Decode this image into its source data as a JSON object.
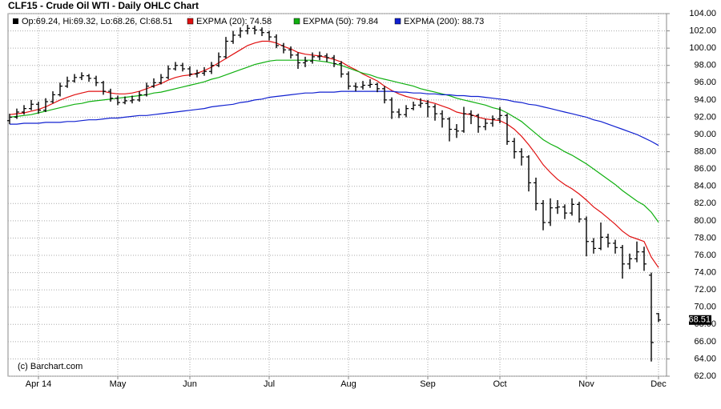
{
  "chart_data": {
    "type": "ohlc",
    "title": "CLF15 - Crude Oil WTI - Daily OHLC Chart",
    "ohlc_legend": "Op:69.24, Hi:69.32, Lo:68.26, Cl:68.51",
    "credit": "(c) Barchart.com",
    "bar_color": "#000000",
    "grid": true,
    "last_value": 68.51,
    "ylim": [
      62,
      104
    ],
    "yticks": [
      {
        "value": 62,
        "label": "62.00"
      },
      {
        "value": 64,
        "label": "64.00"
      },
      {
        "value": 66,
        "label": "66.00"
      },
      {
        "value": 68,
        "label": "68.00"
      },
      {
        "value": 70,
        "label": "70.00"
      },
      {
        "value": 72,
        "label": "72.00"
      },
      {
        "value": 74,
        "label": "74.00"
      },
      {
        "value": 76,
        "label": "76.00"
      },
      {
        "value": 78,
        "label": "78.00"
      },
      {
        "value": 80,
        "label": "80.00"
      },
      {
        "value": 82,
        "label": "82.00"
      },
      {
        "value": 84,
        "label": "84.00"
      },
      {
        "value": 86,
        "label": "86.00"
      },
      {
        "value": 88,
        "label": "88.00"
      },
      {
        "value": 90,
        "label": "90.00"
      },
      {
        "value": 92,
        "label": "92.00"
      },
      {
        "value": 94,
        "label": "94.00"
      },
      {
        "value": 96,
        "label": "96.00"
      },
      {
        "value": 98,
        "label": "98.00"
      },
      {
        "value": 100,
        "label": "100.00"
      },
      {
        "value": 102,
        "label": "102.00"
      },
      {
        "value": 104,
        "label": "104.00"
      }
    ],
    "categories": [
      null,
      null,
      null,
      null,
      "Apr 14",
      null,
      null,
      null,
      null,
      null,
      null,
      null,
      null,
      null,
      null,
      "May",
      null,
      null,
      null,
      null,
      null,
      null,
      null,
      null,
      null,
      "Jun",
      null,
      null,
      null,
      null,
      null,
      null,
      null,
      null,
      null,
      null,
      "Jul",
      null,
      null,
      null,
      null,
      null,
      null,
      null,
      null,
      null,
      null,
      "Aug",
      null,
      null,
      null,
      null,
      null,
      null,
      null,
      null,
      null,
      null,
      "Sep",
      null,
      null,
      null,
      null,
      null,
      null,
      null,
      null,
      null,
      "Oct",
      null,
      null,
      null,
      null,
      null,
      null,
      null,
      null,
      null,
      null,
      null,
      "Nov",
      null,
      null,
      null,
      null,
      null,
      null,
      null,
      null,
      null,
      "Dec"
    ],
    "open": [
      91.6,
      92.0,
      92.6,
      93.0,
      93.5,
      92.8,
      93.8,
      94.6,
      95.6,
      96.2,
      96.6,
      96.8,
      96.5,
      96.0,
      95.0,
      94.2,
      93.7,
      93.9,
      94.0,
      94.6,
      95.6,
      96.0,
      96.6,
      97.6,
      98.0,
      97.6,
      97.0,
      97.1,
      97.3,
      98.0,
      99.0,
      100.8,
      101.5,
      102.0,
      102.3,
      102.1,
      101.8,
      101.3,
      100.3,
      99.8,
      99.2,
      98.3,
      98.5,
      99.0,
      99.1,
      98.9,
      98.2,
      97.0,
      95.6,
      95.5,
      95.7,
      95.8,
      95.3,
      94.0,
      92.6,
      92.3,
      93.0,
      93.4,
      93.6,
      93.2,
      92.4,
      91.8,
      90.6,
      90.4,
      92.4,
      92.2,
      90.9,
      91.3,
      91.8,
      92.2,
      89.2,
      88.0,
      87.4,
      84.4,
      82.0,
      79.8,
      81.5,
      81.6,
      80.9,
      81.9,
      80.2,
      77.6,
      76.8,
      78.1,
      77.4,
      76.9,
      75.0,
      75.6,
      76.4,
      73.7,
      69.24
    ],
    "high": [
      92.4,
      93.0,
      93.4,
      94.0,
      93.8,
      94.2,
      95.0,
      96.0,
      96.7,
      97.0,
      97.2,
      97.0,
      96.8,
      96.2,
      95.3,
      94.5,
      94.4,
      94.5,
      95.0,
      96.0,
      96.5,
      97.0,
      98.0,
      98.4,
      98.3,
      97.9,
      97.5,
      97.8,
      98.4,
      99.5,
      101.3,
      102.0,
      102.4,
      102.7,
      102.6,
      102.4,
      102.0,
      101.6,
      100.6,
      100.2,
      99.5,
      99.0,
      99.5,
      99.6,
      99.4,
      99.2,
      98.5,
      97.3,
      96.0,
      96.2,
      96.4,
      96.0,
      95.6,
      94.3,
      93.0,
      93.4,
      93.8,
      94.2,
      94.0,
      93.5,
      92.8,
      92.0,
      91.2,
      93.2,
      92.8,
      92.4,
      91.8,
      92.2,
      93.2,
      92.4,
      89.6,
      88.4,
      87.6,
      85.0,
      82.4,
      82.6,
      82.4,
      81.9,
      82.6,
      82.2,
      80.5,
      78.0,
      79.8,
      78.5,
      77.8,
      77.2,
      76.2,
      77.6,
      77.0,
      74.0,
      69.32
    ],
    "low": [
      91.2,
      91.8,
      92.3,
      92.8,
      92.4,
      92.6,
      93.6,
      94.4,
      95.4,
      96.0,
      96.3,
      96.1,
      95.6,
      94.6,
      93.8,
      93.4,
      93.5,
      93.6,
      93.8,
      94.4,
      95.4,
      95.8,
      96.4,
      97.4,
      97.3,
      96.7,
      96.6,
      96.8,
      97.0,
      97.8,
      98.8,
      100.5,
      101.2,
      101.6,
      101.6,
      101.4,
      100.9,
      100.0,
      99.4,
      98.8,
      97.6,
      97.8,
      98.2,
      98.6,
      98.4,
      97.8,
      96.6,
      95.2,
      95.0,
      95.2,
      95.4,
      94.9,
      93.6,
      91.8,
      91.9,
      92.0,
      92.8,
      93.1,
      92.0,
      91.6,
      90.8,
      89.2,
      89.6,
      90.2,
      91.2,
      90.2,
      90.5,
      90.9,
      91.3,
      88.8,
      87.2,
      86.4,
      83.4,
      81.2,
      78.9,
      79.4,
      80.8,
      80.2,
      80.6,
      79.8,
      75.9,
      76.2,
      76.6,
      76.9,
      76.2,
      73.3,
      74.4,
      75.2,
      74.2,
      63.7,
      68.26
    ],
    "close": [
      92.0,
      92.6,
      93.0,
      93.5,
      92.8,
      93.8,
      94.6,
      95.6,
      96.2,
      96.6,
      96.8,
      96.5,
      96.0,
      95.0,
      94.2,
      93.7,
      93.9,
      94.0,
      94.6,
      95.6,
      96.0,
      96.6,
      97.6,
      98.0,
      97.6,
      97.0,
      97.1,
      97.3,
      98.0,
      99.0,
      100.8,
      101.5,
      102.0,
      102.3,
      102.1,
      101.8,
      101.3,
      100.3,
      99.8,
      99.2,
      98.3,
      98.5,
      99.0,
      99.1,
      98.9,
      98.2,
      97.0,
      95.6,
      95.5,
      95.7,
      95.8,
      95.3,
      94.0,
      92.6,
      92.3,
      93.0,
      93.4,
      93.6,
      93.2,
      92.4,
      91.8,
      90.6,
      90.4,
      92.4,
      92.2,
      90.9,
      91.3,
      91.8,
      92.2,
      89.2,
      88.0,
      87.4,
      84.4,
      82.0,
      79.8,
      81.5,
      81.6,
      80.9,
      81.9,
      80.2,
      77.6,
      76.8,
      78.1,
      77.4,
      76.9,
      75.0,
      75.6,
      76.4,
      75.0,
      65.9,
      68.51
    ],
    "series": [
      {
        "name": "EXPMA (20): 74.58",
        "color": "#e01010",
        "values": [
          92.3,
          92.4,
          92.5,
          92.7,
          92.9,
          93.2,
          93.6,
          94.0,
          94.3,
          94.6,
          94.8,
          95.0,
          95.0,
          95.0,
          94.8,
          94.7,
          94.7,
          94.8,
          95.0,
          95.3,
          95.6,
          95.9,
          96.3,
          96.6,
          96.8,
          96.9,
          97.1,
          97.4,
          97.8,
          98.3,
          98.8,
          99.3,
          99.8,
          100.3,
          100.6,
          100.8,
          100.8,
          100.6,
          100.2,
          99.9,
          99.5,
          99.3,
          99.2,
          99.1,
          98.9,
          98.7,
          98.4,
          97.9,
          97.5,
          97.0,
          96.6,
          96.2,
          95.6,
          95.1,
          94.7,
          94.4,
          94.2,
          94.0,
          93.8,
          93.6,
          93.3,
          93.0,
          92.6,
          92.4,
          92.3,
          92.0,
          91.8,
          91.7,
          91.6,
          91.2,
          90.6,
          89.8,
          88.8,
          87.7,
          86.5,
          85.6,
          84.8,
          84.2,
          83.7,
          83.1,
          82.4,
          81.6,
          81.0,
          80.3,
          79.6,
          78.8,
          78.2,
          77.9,
          77.6,
          75.8,
          74.58
        ]
      },
      {
        "name": "EXPMA (50): 79.84",
        "color": "#10b010",
        "values": [
          92.0,
          92.1,
          92.2,
          92.3,
          92.5,
          92.7,
          92.9,
          93.1,
          93.3,
          93.5,
          93.6,
          93.8,
          93.9,
          94.0,
          94.1,
          94.2,
          94.3,
          94.4,
          94.5,
          94.6,
          94.8,
          94.9,
          95.1,
          95.3,
          95.5,
          95.7,
          95.9,
          96.1,
          96.4,
          96.6,
          96.9,
          97.2,
          97.5,
          97.8,
          98.1,
          98.3,
          98.5,
          98.6,
          98.6,
          98.6,
          98.6,
          98.6,
          98.6,
          98.5,
          98.4,
          98.2,
          98.0,
          97.7,
          97.4,
          97.1,
          96.9,
          96.6,
          96.4,
          96.2,
          96.0,
          95.8,
          95.6,
          95.3,
          95.1,
          94.9,
          94.7,
          94.5,
          94.2,
          94.0,
          93.8,
          93.6,
          93.4,
          93.1,
          92.9,
          92.5,
          92.0,
          91.5,
          90.8,
          90.1,
          89.4,
          88.9,
          88.5,
          88.0,
          87.6,
          87.1,
          86.6,
          86.0,
          85.4,
          84.8,
          84.2,
          83.5,
          82.9,
          82.3,
          81.8,
          81.0,
          79.84
        ]
      },
      {
        "name": "EXPMA (200): 88.73",
        "color": "#1020d0",
        "values": [
          91.2,
          91.2,
          91.3,
          91.3,
          91.3,
          91.4,
          91.4,
          91.4,
          91.5,
          91.5,
          91.6,
          91.7,
          91.7,
          91.8,
          91.9,
          91.9,
          92.0,
          92.1,
          92.2,
          92.2,
          92.3,
          92.4,
          92.5,
          92.6,
          92.7,
          92.8,
          92.9,
          93.0,
          93.2,
          93.3,
          93.4,
          93.5,
          93.7,
          93.8,
          94.0,
          94.1,
          94.3,
          94.4,
          94.5,
          94.6,
          94.7,
          94.8,
          94.8,
          94.9,
          94.9,
          94.9,
          95.0,
          95.0,
          95.0,
          95.0,
          95.0,
          95.0,
          95.0,
          95.0,
          94.9,
          94.9,
          94.8,
          94.8,
          94.7,
          94.7,
          94.6,
          94.6,
          94.5,
          94.5,
          94.4,
          94.4,
          94.3,
          94.2,
          94.1,
          94.0,
          93.8,
          93.7,
          93.5,
          93.4,
          93.2,
          93.0,
          92.8,
          92.6,
          92.4,
          92.2,
          92.0,
          91.7,
          91.5,
          91.2,
          90.9,
          90.6,
          90.3,
          90.0,
          89.6,
          89.2,
          88.73
        ]
      }
    ]
  }
}
